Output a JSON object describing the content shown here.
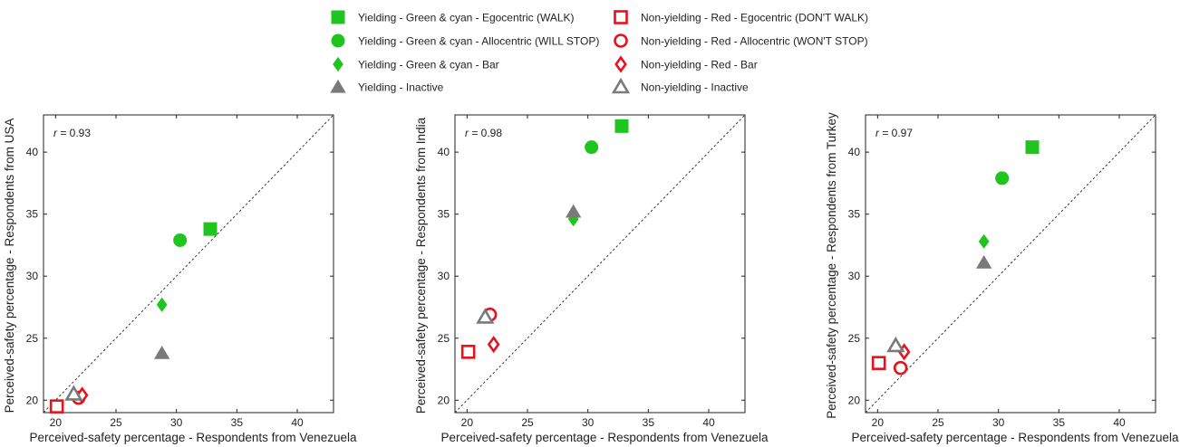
{
  "colors": {
    "green": "#1fc41f",
    "red": "#e8121c",
    "gray": "#7a7a7a"
  },
  "legend": [
    {
      "label": "Yielding - Green & cyan - Egocentric (WALK)",
      "shape": "square",
      "color": "green",
      "filled": true
    },
    {
      "label": "Non-yielding - Red - Egocentric (DON'T WALK)",
      "shape": "square",
      "color": "red",
      "filled": false
    },
    {
      "label": "Yielding - Green & cyan - Allocentric (WILL STOP)",
      "shape": "circle",
      "color": "green",
      "filled": true
    },
    {
      "label": "Non-yielding - Red - Allocentric (WON'T STOP)",
      "shape": "circle",
      "color": "red",
      "filled": false
    },
    {
      "label": "Yielding - Green & cyan - Bar",
      "shape": "diamond",
      "color": "green",
      "filled": true
    },
    {
      "label": "Non-yielding - Red - Bar",
      "shape": "diamond",
      "color": "red",
      "filled": false
    },
    {
      "label": "Yielding - Inactive",
      "shape": "triangle",
      "color": "gray",
      "filled": true
    },
    {
      "label": "Non-yielding - Inactive",
      "shape": "triangle",
      "color": "gray",
      "filled": false
    }
  ],
  "chart_data": [
    {
      "type": "scatter",
      "xlabel": "Perceived-safety percentage - Respondents from Venezuela",
      "ylabel": "Perceived-safety percentage - Respondents from USA",
      "annotation": {
        "r_symbol": "r",
        "r_value": "= 0.93"
      },
      "xlim": [
        19,
        43
      ],
      "ylim": [
        19,
        43
      ],
      "xticks": [
        "20",
        "25",
        "30",
        "35",
        "40"
      ],
      "yticks": [
        "20",
        "25",
        "30",
        "35",
        "40"
      ],
      "diagonal": true,
      "points": [
        {
          "series": "Yielding - Green & cyan - Egocentric (WALK)",
          "x": 32.8,
          "y": 33.8
        },
        {
          "series": "Yielding - Green & cyan - Allocentric (WILL STOP)",
          "x": 30.3,
          "y": 32.9
        },
        {
          "series": "Yielding - Green & cyan - Bar",
          "x": 28.8,
          "y": 27.7
        },
        {
          "series": "Yielding - Inactive",
          "x": 28.8,
          "y": 23.8
        },
        {
          "series": "Non-yielding - Red - Egocentric (DON'T WALK)",
          "x": 20.1,
          "y": 19.5
        },
        {
          "series": "Non-yielding - Red - Allocentric (WON'T STOP)",
          "x": 21.9,
          "y": 20.2
        },
        {
          "series": "Non-yielding - Red - Bar",
          "x": 22.2,
          "y": 20.4
        },
        {
          "series": "Non-yielding - Inactive",
          "x": 21.5,
          "y": 20.5
        }
      ]
    },
    {
      "type": "scatter",
      "xlabel": "Perceived-safety percentage - Respondents from Venezuela",
      "ylabel": "Perceived-safety percentage - Respondents from India",
      "annotation": {
        "r_symbol": "r",
        "r_value": "= 0.98"
      },
      "xlim": [
        19,
        43
      ],
      "ylim": [
        19,
        43
      ],
      "xticks": [
        "20",
        "25",
        "30",
        "35",
        "40"
      ],
      "yticks": [
        "20",
        "25",
        "30",
        "35",
        "40"
      ],
      "diagonal": true,
      "points": [
        {
          "series": "Yielding - Green & cyan - Egocentric (WALK)",
          "x": 32.8,
          "y": 42.1
        },
        {
          "series": "Yielding - Green & cyan - Allocentric (WILL STOP)",
          "x": 30.3,
          "y": 40.4
        },
        {
          "series": "Yielding - Green & cyan - Bar",
          "x": 28.8,
          "y": 34.6
        },
        {
          "series": "Yielding - Inactive",
          "x": 28.8,
          "y": 35.2
        },
        {
          "series": "Non-yielding - Red - Egocentric (DON'T WALK)",
          "x": 20.1,
          "y": 23.9
        },
        {
          "series": "Non-yielding - Red - Allocentric (WON'T STOP)",
          "x": 21.9,
          "y": 26.9
        },
        {
          "series": "Non-yielding - Red - Bar",
          "x": 22.2,
          "y": 24.5
        },
        {
          "series": "Non-yielding - Inactive",
          "x": 21.5,
          "y": 26.7
        }
      ]
    },
    {
      "type": "scatter",
      "xlabel": "Perceived-safety percentage - Respondents from Venezuela",
      "ylabel": "Perceived-safety percentage - Respondents from Turkey",
      "annotation": {
        "r_symbol": "r",
        "r_value": "= 0.97"
      },
      "xlim": [
        19,
        43
      ],
      "ylim": [
        19,
        43
      ],
      "xticks": [
        "20",
        "25",
        "30",
        "35",
        "40"
      ],
      "yticks": [
        "20",
        "25",
        "30",
        "35",
        "40"
      ],
      "diagonal": true,
      "points": [
        {
          "series": "Yielding - Green & cyan - Egocentric (WALK)",
          "x": 32.8,
          "y": 40.4
        },
        {
          "series": "Yielding - Green & cyan - Allocentric (WILL STOP)",
          "x": 30.3,
          "y": 37.9
        },
        {
          "series": "Yielding - Green & cyan - Bar",
          "x": 28.8,
          "y": 32.8
        },
        {
          "series": "Yielding - Inactive",
          "x": 28.8,
          "y": 31.1
        },
        {
          "series": "Non-yielding - Red - Egocentric (DON'T WALK)",
          "x": 20.1,
          "y": 23.0
        },
        {
          "series": "Non-yielding - Red - Allocentric (WON'T STOP)",
          "x": 21.9,
          "y": 22.6
        },
        {
          "series": "Non-yielding - Red - Bar",
          "x": 22.2,
          "y": 23.9
        },
        {
          "series": "Non-yielding - Inactive",
          "x": 21.5,
          "y": 24.4
        }
      ]
    }
  ]
}
